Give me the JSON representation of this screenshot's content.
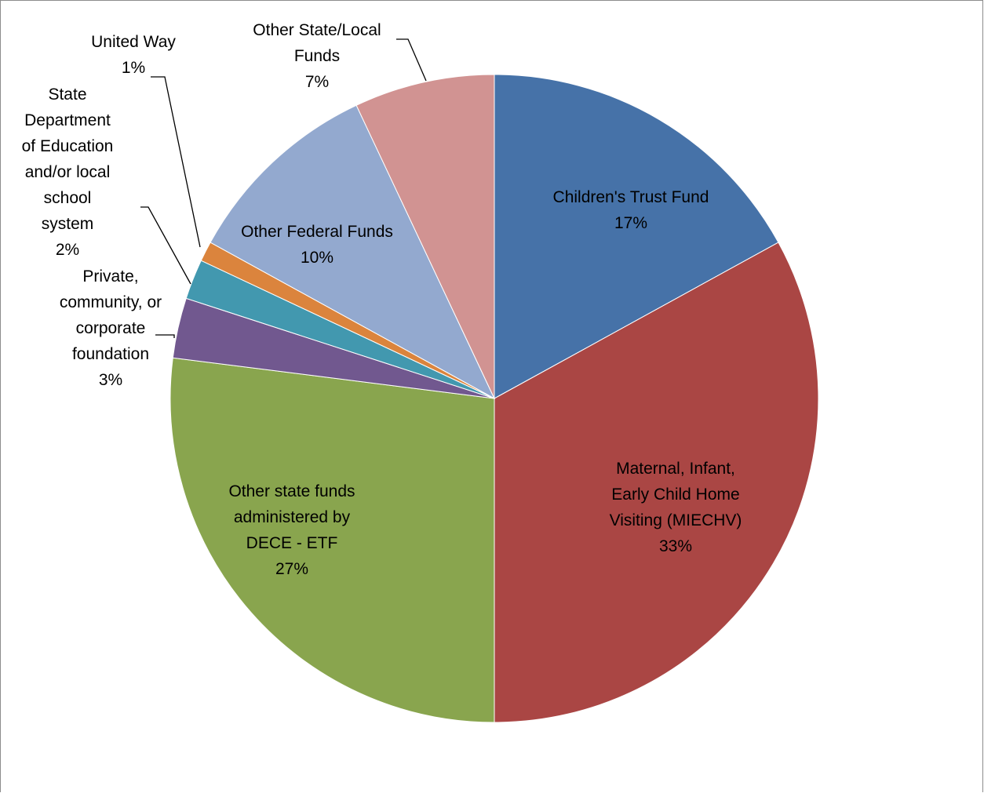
{
  "chart_data": {
    "type": "pie",
    "title": "",
    "start_angle_deg": 0,
    "direction": "clockwise",
    "legend": "none",
    "slices": [
      {
        "name": "Children's Trust Fund",
        "lines": [
          "Children's Trust Fund"
        ],
        "value": 17,
        "pct_label": "17%",
        "color": "#4672a8",
        "label_mode": "inside"
      },
      {
        "name": "Maternal, Infant, Early Child Home Visiting (MIECHV)",
        "lines": [
          "Maternal, Infant,",
          "Early Child Home",
          "Visiting (MIECHV)"
        ],
        "value": 33,
        "pct_label": "33%",
        "color": "#aa4644",
        "label_mode": "inside"
      },
      {
        "name": "Other state funds administered by DECE - ETF",
        "lines": [
          "Other state funds",
          "administered by",
          "DECE - ETF"
        ],
        "value": 27,
        "pct_label": "27%",
        "color": "#89a54e",
        "label_mode": "inside"
      },
      {
        "name": "Private, community, or corporate foundation",
        "lines": [
          "Private,",
          "community, or",
          "corporate",
          "foundation"
        ],
        "value": 3,
        "pct_label": "3%",
        "color": "#71588f",
        "label_mode": "outside"
      },
      {
        "name": "State Department of Education and/or local school system",
        "lines": [
          "State",
          "Department",
          "of Education",
          "and/or local",
          "school",
          "system"
        ],
        "value": 2,
        "pct_label": "2%",
        "color": "#4298af",
        "label_mode": "outside"
      },
      {
        "name": "United Way",
        "lines": [
          "United Way"
        ],
        "value": 1,
        "pct_label": "1%",
        "color": "#db843d",
        "label_mode": "outside"
      },
      {
        "name": "Other Federal Funds",
        "lines": [
          "Other Federal Funds"
        ],
        "value": 10,
        "pct_label": "10%",
        "color": "#93a9cf",
        "label_mode": "inside"
      },
      {
        "name": "Other State/Local Funds",
        "lines": [
          "Other State/Local",
          "Funds"
        ],
        "value": 7,
        "pct_label": "7%",
        "color": "#d19392",
        "label_mode": "outside"
      }
    ]
  }
}
